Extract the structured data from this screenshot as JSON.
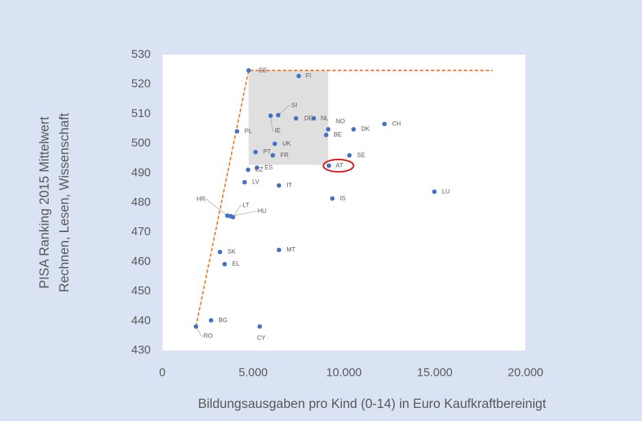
{
  "chart_data": {
    "type": "scatter",
    "x_label": "Bildungsausgaben pro Kind (0-14) in Euro Kaufkraftbereinigt",
    "y_label": [
      "PISA Ranking 2015 Mittelwert",
      "Rechnen, Lesen, Wissenschaft"
    ],
    "color": "#4472c4",
    "labels": [
      "EE",
      "FI",
      "SI",
      "IE",
      "DE",
      "NL",
      "NO",
      "BE",
      "DK",
      "CH",
      "PL",
      "UK",
      "PT",
      "FR",
      "SE",
      "AT",
      "ES",
      "CZ",
      "LV",
      "IT",
      "LU",
      "IS",
      "HR",
      "LT",
      "HU",
      "SK",
      "MT",
      "EL",
      "BG",
      "RO",
      "CY"
    ],
    "x": [
      4750,
      7510,
      6380,
      5960,
      7360,
      8340,
      9130,
      9020,
      10530,
      12230,
      4110,
      6190,
      5130,
      6080,
      10300,
      9170,
      5210,
      4720,
      4530,
      6420,
      14980,
      9360,
      3580,
      3890,
      3770,
      3170,
      6420,
      3430,
      2680,
      1850,
      5360
    ],
    "y": [
      524.7,
      522.8,
      509.6,
      509.4,
      508.5,
      508.5,
      504.8,
      502.9,
      504.8,
      506.6,
      504.1,
      499.9,
      497.1,
      496,
      496,
      492.5,
      491.8,
      491.1,
      486.9,
      485.8,
      483.7,
      481.4,
      475.6,
      475.1,
      475.4,
      463.3,
      464,
      459.2,
      440.2,
      438.1,
      438.1
    ],
    "highlight": "AT",
    "highlight_color": "#e31a1c",
    "frontier": {
      "color": "#ed7d31",
      "x": [
        1850,
        4750,
        18200
      ],
      "y": [
        438.1,
        524.7,
        524.7
      ]
    },
    "shade": {
      "color": "#d9d9d9",
      "x": [
        4750,
        9130
      ],
      "y": [
        492.8,
        524.7
      ]
    },
    "xlim": [
      0,
      20000
    ],
    "ylim": [
      430,
      530
    ],
    "xticks": [
      0,
      {
        "value": 5000,
        "label": "5.000"
      },
      {
        "value": 10000,
        "label": "10.000"
      },
      {
        "value": 15000,
        "label": "15.000"
      },
      {
        "value": 20000,
        "label": "20.000"
      }
    ],
    "yticks": [
      430,
      440,
      450,
      460,
      470,
      480,
      490,
      500,
      510,
      520,
      530
    ]
  }
}
